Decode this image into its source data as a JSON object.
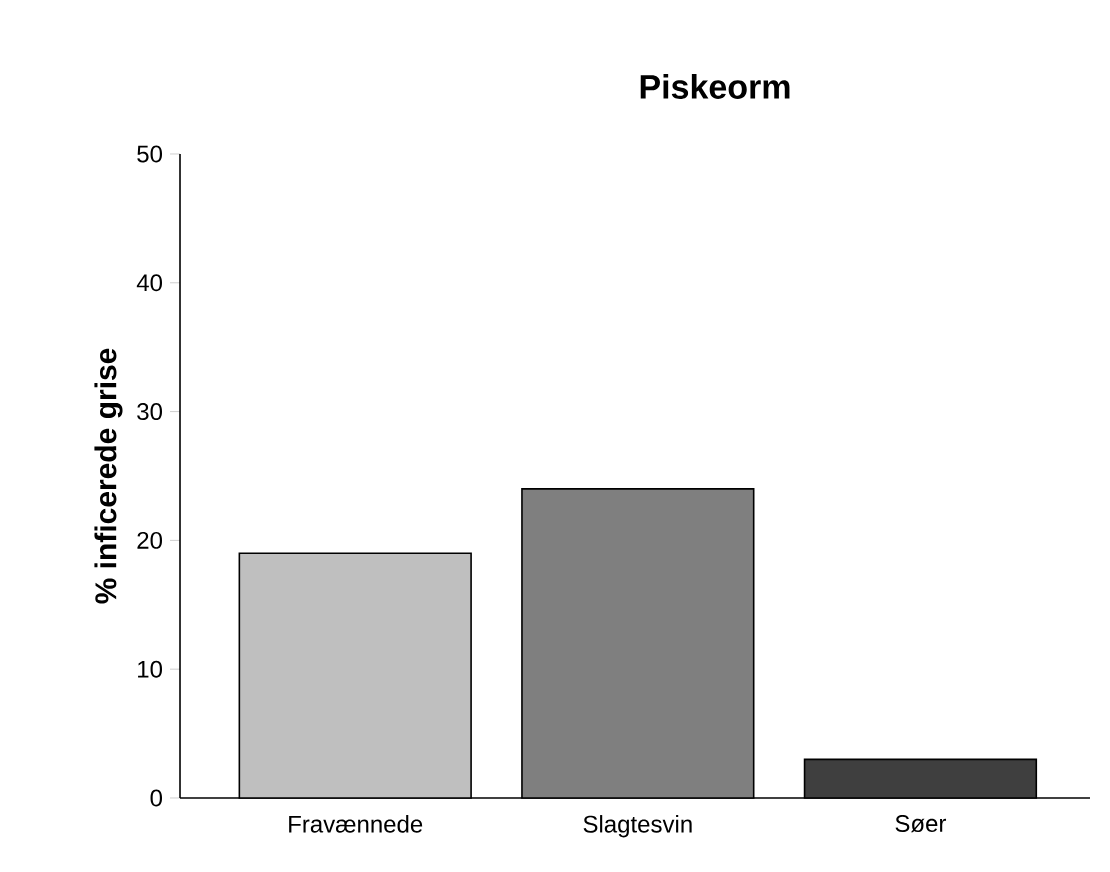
{
  "chart_data": {
    "type": "bar",
    "title": "Piskeorm",
    "ylabel": "% inficerede grise",
    "categories": [
      "Fravænnede",
      "Slagtesvin",
      "Søer"
    ],
    "values": [
      19,
      24,
      3
    ],
    "colors": [
      "#bfbfbf",
      "#7f7f7f",
      "#3f3f3f"
    ],
    "ylim": [
      0,
      50
    ],
    "yticks": [
      0,
      10,
      20,
      30,
      40,
      50
    ],
    "grid": false
  }
}
